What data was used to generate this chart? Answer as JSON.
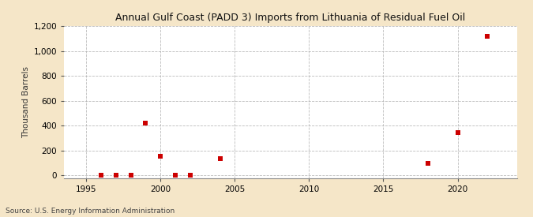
{
  "title": "Annual Gulf Coast (PADD 3) Imports from Lithuania of Residual Fuel Oil",
  "ylabel": "Thousand Barrels",
  "source": "Source: U.S. Energy Information Administration",
  "background_color": "#f5e6c8",
  "plot_background_color": "#ffffff",
  "marker_color": "#cc0000",
  "marker_size": 4,
  "data_points": [
    [
      1996,
      2
    ],
    [
      1997,
      2
    ],
    [
      1998,
      2
    ],
    [
      1999,
      420
    ],
    [
      2000,
      155
    ],
    [
      2001,
      2
    ],
    [
      2002,
      2
    ],
    [
      2004,
      135
    ],
    [
      2018,
      100
    ],
    [
      2020,
      345
    ],
    [
      2022,
      1120
    ]
  ],
  "xlim": [
    1993.5,
    2024
  ],
  "ylim": [
    -20,
    1200
  ],
  "yticks": [
    0,
    200,
    400,
    600,
    800,
    1000,
    1200
  ],
  "xticks": [
    1995,
    2000,
    2005,
    2010,
    2015,
    2020
  ],
  "grid_color": "#aaaaaa",
  "grid_linestyle": "--",
  "grid_alpha": 0.8
}
